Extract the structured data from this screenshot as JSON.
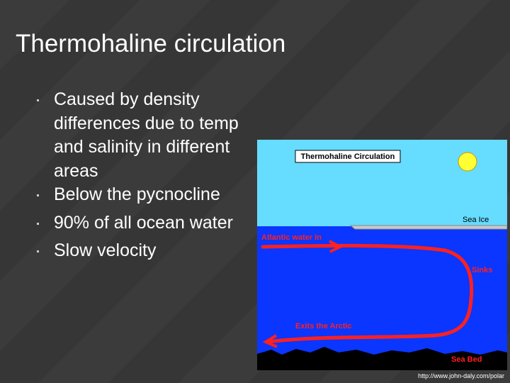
{
  "slide": {
    "title": "Thermohaline circulation",
    "bullets": [
      "Caused by density differences due to temp and salinity in different areas",
      "Below the pycnocline",
      "90% of all ocean water",
      "Slow velocity"
    ],
    "diagram": {
      "title": "Thermohaline Circulation",
      "labels": {
        "sea_ice": "Sea Ice",
        "inflow": "Atlantic water In",
        "sinks": "Sinks",
        "exits": "Exits the Arctic",
        "sea_bed": "Sea Bed"
      }
    },
    "source": "http://www.john-daly.com/polar"
  }
}
